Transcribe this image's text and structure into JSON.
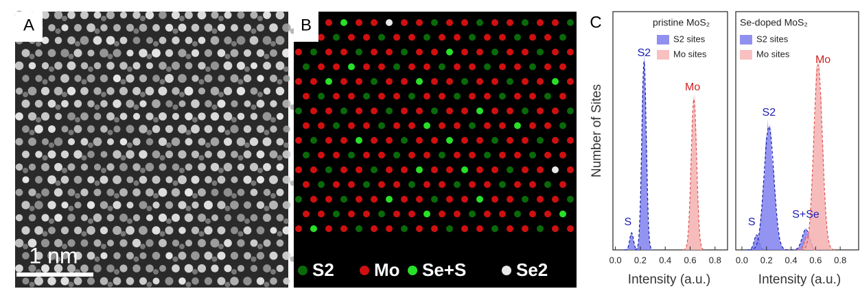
{
  "panel_a": {
    "label": "A",
    "scale_bar": "1 nm"
  },
  "panel_b": {
    "label": "B",
    "legend": [
      "S2",
      "Mo",
      "Se+S",
      "Se2"
    ]
  },
  "panel_c": {
    "label": "C",
    "y_label": "Number of Sites",
    "plots": [
      {
        "title": "pristine MoS₂",
        "legend": [
          "S2 sites",
          "Mo sites"
        ],
        "annotations": [
          "S",
          "S2",
          "Mo"
        ],
        "xlim": [
          -0.02,
          0.9
        ],
        "xticks": [
          {
            "value": 0,
            "label": "0.0"
          },
          0.2,
          0.4,
          0.6,
          0.8
        ],
        "x_label": "Intensity (a.u.)"
      },
      {
        "title": "Se-doped MoS₂",
        "legend": [
          "S2 sites",
          "Mo sites"
        ],
        "annotations": [
          "S",
          "S2",
          "S+Se",
          "Mo"
        ],
        "xlim": [
          -0.05,
          0.95
        ],
        "xticks": [
          {
            "value": 0,
            "label": "0.0"
          },
          0.2,
          0.4,
          0.6,
          0.8
        ],
        "x_label": "Intensity (a.u.)"
      }
    ]
  }
}
